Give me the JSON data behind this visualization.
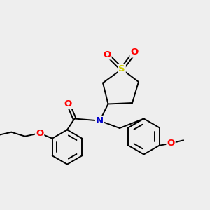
{
  "bg_color": "#eeeeee",
  "bond_color": "#000000",
  "atom_colors": {
    "S": "#cccc00",
    "O": "#ff0000",
    "N": "#0000cc",
    "C": "#000000"
  },
  "line_width": 1.4,
  "dbo": 0.07
}
